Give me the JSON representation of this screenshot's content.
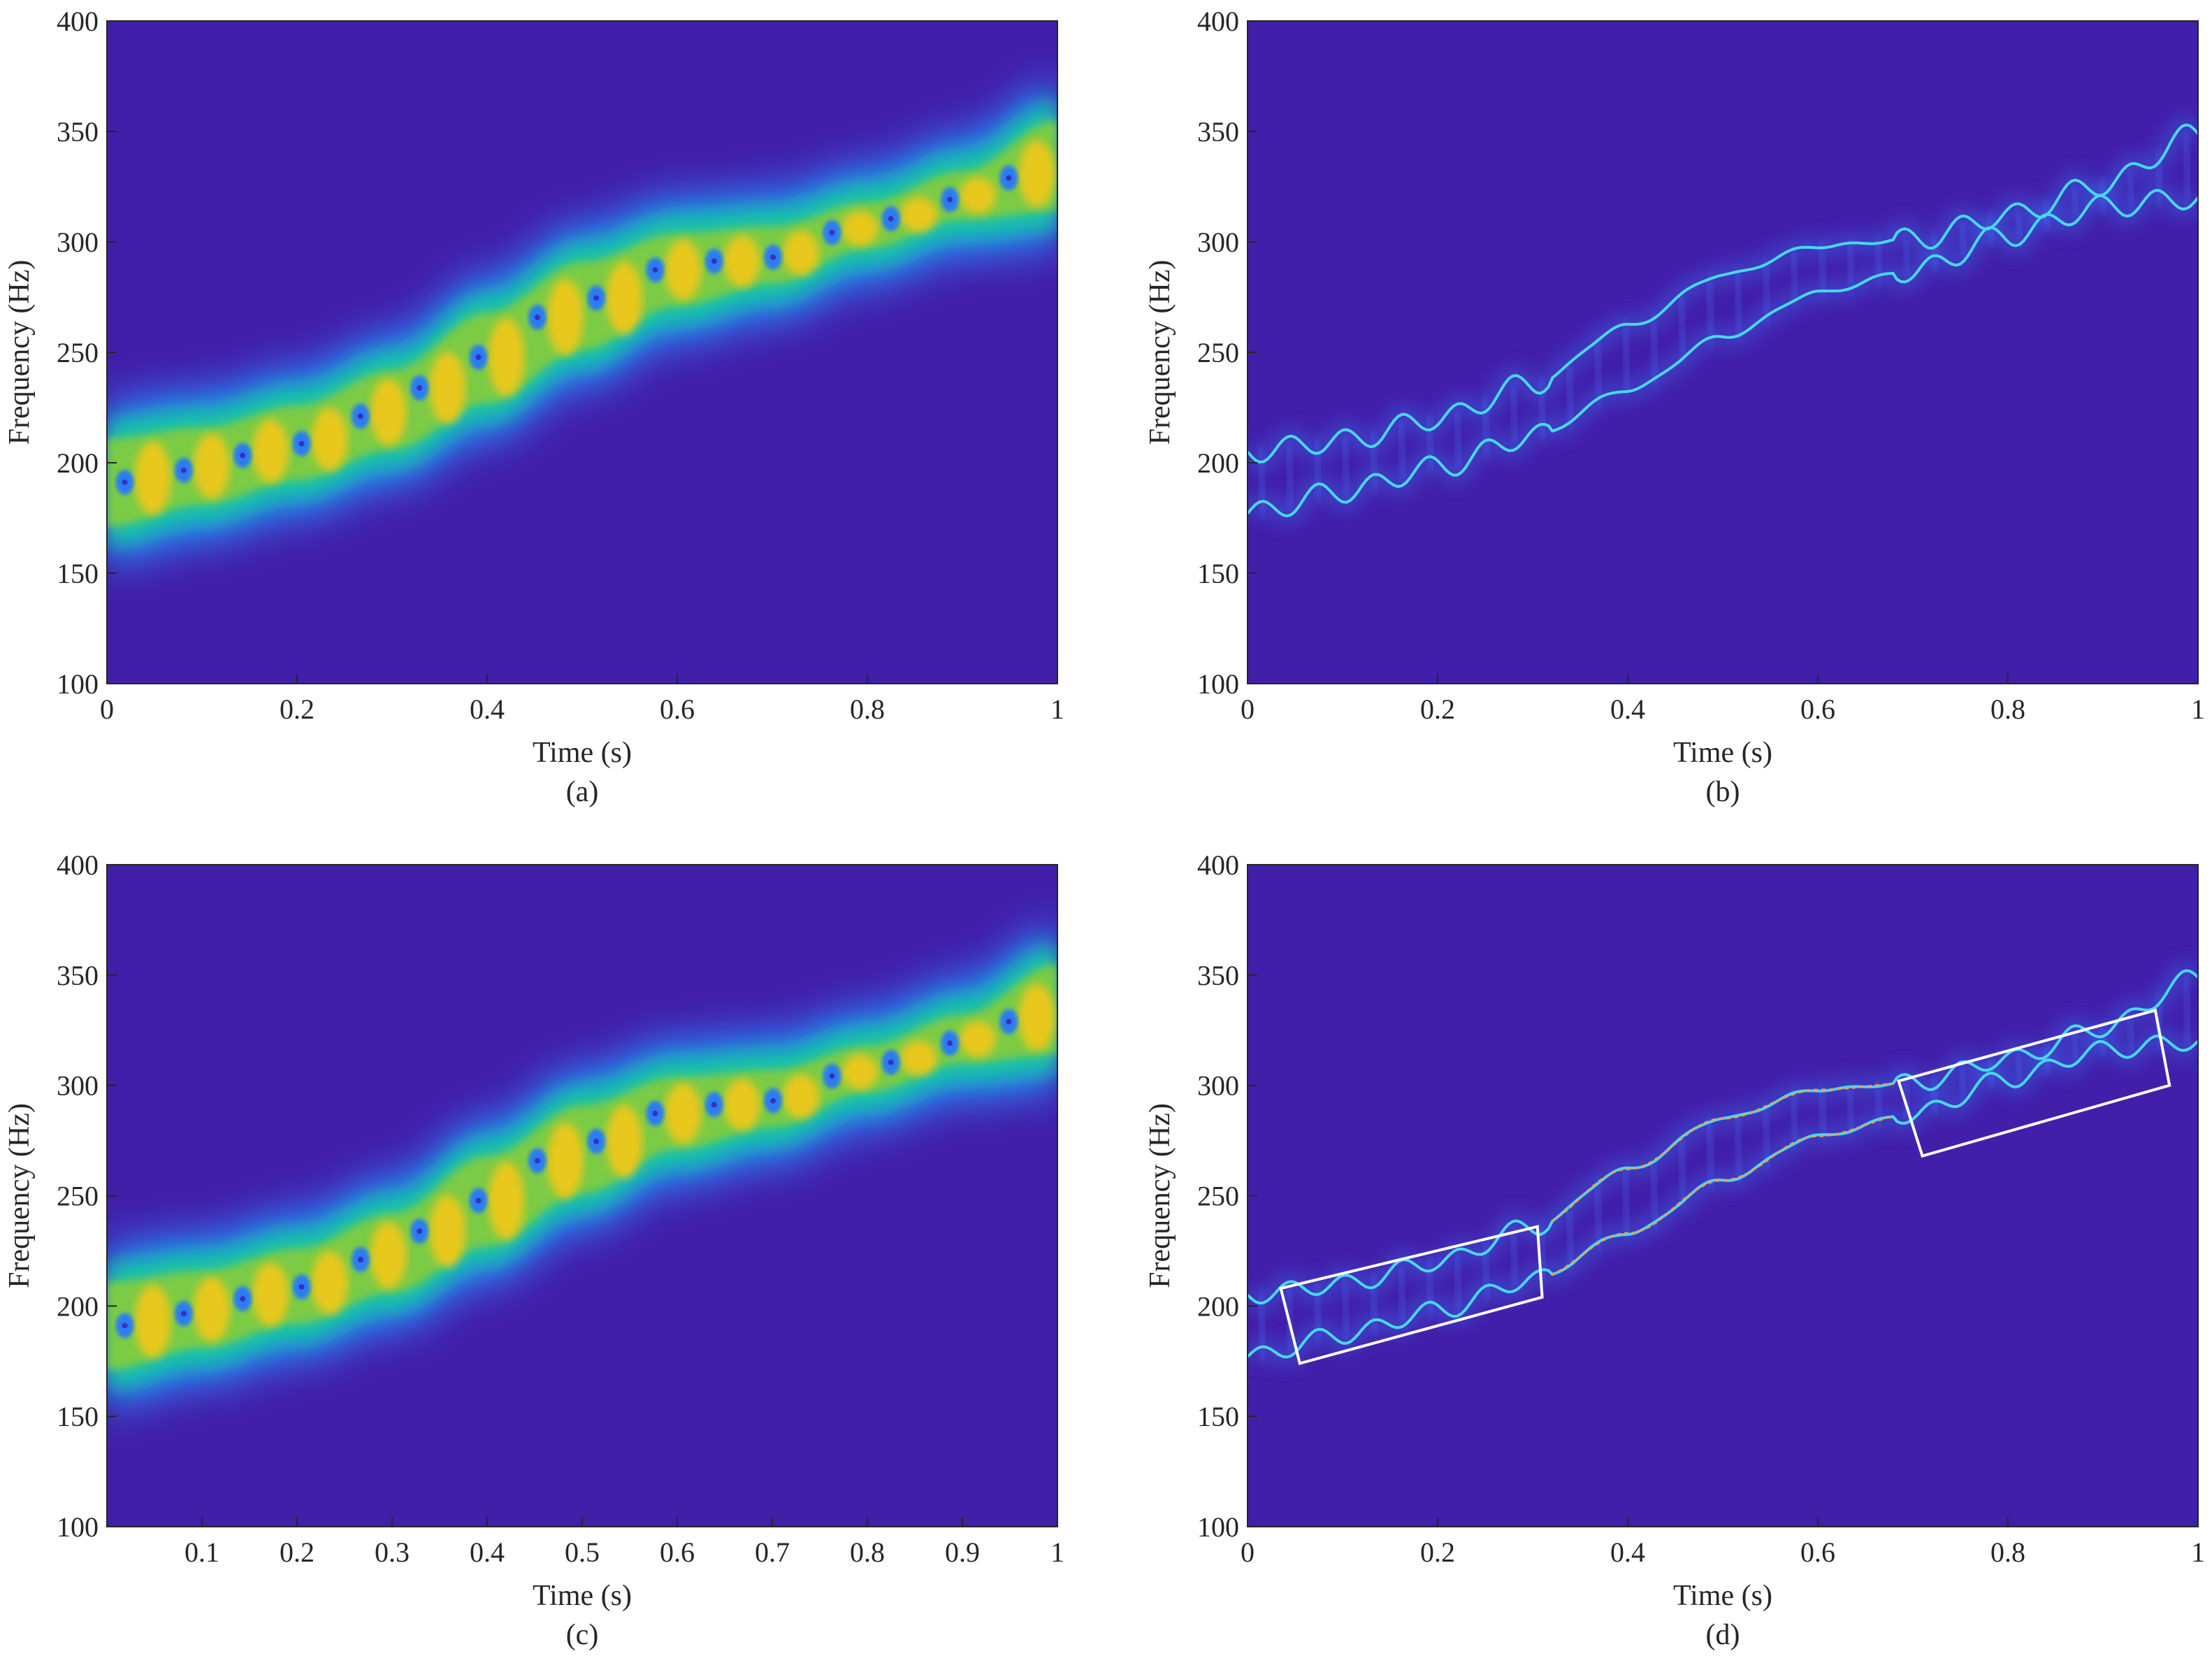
{
  "colors": {
    "background": "#421fa9",
    "band_edge": "#2a7cf2",
    "band_mid": "#12c2a8",
    "band_body": "#7ccb44",
    "band_core": "#e8c81a",
    "ridge_blue": "#3a6cf0",
    "ridge_cyan": "#48d8f0",
    "ridge_hot": "#f0a040",
    "box": "#ffffff"
  },
  "chart_data": [
    {
      "type": "heatmap",
      "caption": "(a)",
      "xlabel": "Time (s)",
      "ylabel": "Frequency (Hz)",
      "xlim": [
        0,
        1
      ],
      "ylim": [
        100,
        400
      ],
      "xticks": [
        "0",
        "0.2",
        "0.4",
        "0.6",
        "0.8",
        "1"
      ],
      "yticks": [
        "100",
        "150",
        "200",
        "250",
        "300",
        "350",
        "400"
      ],
      "style": "broad",
      "components": [
        {
          "t": [
            0,
            0.1,
            0.2,
            0.3,
            0.4,
            0.5,
            0.6,
            0.7,
            0.8,
            0.9,
            1.0
          ],
          "f": [
            177,
            187,
            198,
            212,
            233,
            257,
            277,
            287,
            303,
            316,
            320
          ]
        },
        {
          "t": [
            0,
            0.1,
            0.2,
            0.3,
            0.4,
            0.5,
            0.6,
            0.7,
            0.8,
            0.9,
            1.0
          ],
          "f": [
            205,
            210,
            220,
            236,
            262,
            285,
            298,
            301,
            312,
            326,
            349
          ]
        }
      ]
    },
    {
      "type": "heatmap",
      "caption": "(b)",
      "xlabel": "Time (s)",
      "ylabel": "Frequency (Hz)",
      "xlim": [
        0,
        1
      ],
      "ylim": [
        100,
        400
      ],
      "xticks": [
        "0",
        "0.2",
        "0.4",
        "0.6",
        "0.8",
        "1"
      ],
      "yticks": [
        "100",
        "150",
        "200",
        "250",
        "300",
        "350",
        "400"
      ],
      "style": "ridge",
      "components": [
        {
          "t": [
            0,
            0.1,
            0.2,
            0.3,
            0.4,
            0.5,
            0.6,
            0.7,
            0.8,
            0.9,
            1.0
          ],
          "f": [
            177,
            187,
            198,
            212,
            233,
            257,
            277,
            287,
            303,
            316,
            320
          ]
        },
        {
          "t": [
            0,
            0.1,
            0.2,
            0.3,
            0.4,
            0.5,
            0.6,
            0.7,
            0.8,
            0.9,
            1.0
          ],
          "f": [
            205,
            210,
            220,
            236,
            262,
            285,
            298,
            301,
            312,
            326,
            349
          ]
        }
      ]
    },
    {
      "type": "heatmap",
      "caption": "(c)",
      "xlabel": "Time (s)",
      "ylabel": "Frequency (Hz)",
      "xlim": [
        0,
        1
      ],
      "ylim": [
        100,
        400
      ],
      "xticks": [
        "0.1",
        "0.2",
        "0.3",
        "0.4",
        "0.5",
        "0.6",
        "0.7",
        "0.8",
        "0.9",
        "1"
      ],
      "yticks": [
        "100",
        "150",
        "200",
        "250",
        "300",
        "350",
        "400"
      ],
      "style": "broad",
      "components": [
        {
          "t": [
            0,
            0.1,
            0.2,
            0.3,
            0.4,
            0.5,
            0.6,
            0.7,
            0.8,
            0.9,
            1.0
          ],
          "f": [
            177,
            187,
            198,
            212,
            233,
            257,
            277,
            287,
            303,
            316,
            320
          ]
        },
        {
          "t": [
            0,
            0.1,
            0.2,
            0.3,
            0.4,
            0.5,
            0.6,
            0.7,
            0.8,
            0.9,
            1.0
          ],
          "f": [
            205,
            210,
            220,
            236,
            262,
            285,
            298,
            301,
            312,
            326,
            349
          ]
        }
      ]
    },
    {
      "type": "heatmap",
      "caption": "(d)",
      "xlabel": "Time (s)",
      "ylabel": "Frequency (Hz)",
      "xlim": [
        0,
        1
      ],
      "ylim": [
        100,
        400
      ],
      "xticks": [
        "0",
        "0.2",
        "0.4",
        "0.6",
        "0.8",
        "1"
      ],
      "yticks": [
        "100",
        "150",
        "200",
        "250",
        "300",
        "350",
        "400"
      ],
      "style": "ridge-sharp",
      "components": [
        {
          "t": [
            0,
            0.1,
            0.2,
            0.3,
            0.4,
            0.5,
            0.6,
            0.7,
            0.8,
            0.9,
            1.0
          ],
          "f": [
            177,
            187,
            198,
            212,
            233,
            257,
            277,
            287,
            303,
            316,
            320
          ]
        },
        {
          "t": [
            0,
            0.1,
            0.2,
            0.3,
            0.4,
            0.5,
            0.6,
            0.7,
            0.8,
            0.9,
            1.0
          ],
          "f": [
            205,
            210,
            220,
            236,
            262,
            285,
            298,
            301,
            312,
            326,
            349
          ]
        }
      ],
      "highlight_boxes": [
        {
          "corners": [
            [
              0.035,
              208
            ],
            [
              0.305,
              236
            ],
            [
              0.31,
              204
            ],
            [
              0.055,
              174
            ]
          ]
        },
        {
          "corners": [
            [
              0.685,
              302
            ],
            [
              0.955,
              334
            ],
            [
              0.97,
              300
            ],
            [
              0.71,
              268
            ]
          ]
        }
      ]
    }
  ]
}
